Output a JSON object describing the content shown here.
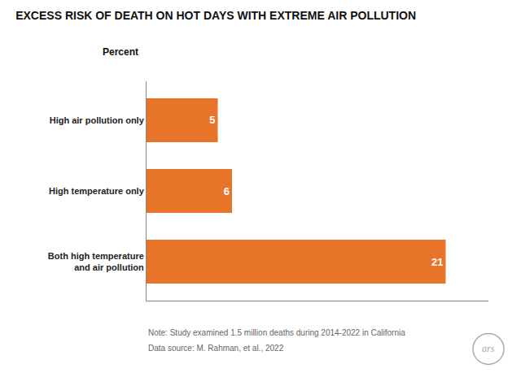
{
  "chart_data": {
    "type": "bar",
    "orientation": "horizontal",
    "title": "EXCESS RISK OF DEATH ON HOT DAYS WITH EXTREME AIR POLLUTION",
    "subtitle": "Percent",
    "categories": [
      "Both high temperature\nand air pollution",
      "High temperature only",
      "High air pollution only"
    ],
    "values": [
      21,
      6,
      5
    ],
    "color": "#E8742A",
    "xlim": [
      0,
      24
    ],
    "data_labels": true,
    "tick_labels": "y",
    "grid": false,
    "annotations": [
      "Note: Study examined 1.5 million deaths during 2014-2022 in California",
      "Data source: M. Rahman, et al., 2022",
      "ars"
    ]
  }
}
